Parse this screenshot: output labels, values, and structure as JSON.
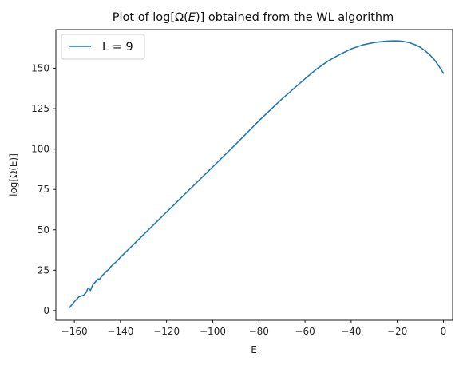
{
  "chart_data": {
    "type": "line",
    "title": "Plot of log[Ω(E)] obtained from the WL algorithm",
    "title_parts": {
      "prefix": "Plot of log[Ω(",
      "italic": "E",
      "suffix": ")] obtained from the WL algorithm"
    },
    "xlabel": "E",
    "ylabel": "log[Ω(E)]",
    "xlim": [
      -168,
      4
    ],
    "ylim": [
      -6,
      174
    ],
    "xticks": [
      -160,
      -140,
      -120,
      -100,
      -80,
      -60,
      -40,
      -20,
      0
    ],
    "xtick_labels": [
      "−160",
      "−140",
      "−120",
      "−100",
      "−80",
      "−60",
      "−40",
      "−20",
      "0"
    ],
    "yticks": [
      0,
      25,
      50,
      75,
      100,
      125,
      150
    ],
    "ytick_labels": [
      "0",
      "25",
      "50",
      "75",
      "100",
      "125",
      "150"
    ],
    "grid": false,
    "legend": {
      "placement": "top-left",
      "entries": [
        "L = 9"
      ]
    },
    "colors": {
      "series": "#1f77b4"
    },
    "series": [
      {
        "name": "L = 9",
        "x": [
          -162,
          -160,
          -158,
          -157,
          -156,
          -155,
          -154,
          -153,
          -152,
          -151,
          -150,
          -149,
          -148,
          -147,
          -146,
          -145,
          -144,
          -142,
          -140,
          -135,
          -130,
          -125,
          -120,
          -110,
          -100,
          -90,
          -80,
          -70,
          -60,
          -55,
          -50,
          -45,
          -40,
          -35,
          -30,
          -25,
          -22,
          -20,
          -18,
          -15,
          -12,
          -10,
          -8,
          -6,
          -4,
          -2,
          0
        ],
        "y": [
          2,
          5.5,
          8.5,
          9,
          9.5,
          11,
          14,
          12.5,
          16,
          17.5,
          19.5,
          19.5,
          21.5,
          23,
          24.5,
          25.5,
          27.5,
          30,
          33,
          40,
          47,
          54,
          61,
          75,
          89,
          103,
          117.5,
          131,
          143.5,
          149.5,
          154.5,
          158.5,
          162,
          164.5,
          166,
          166.8,
          167,
          167,
          166.8,
          166,
          164.5,
          163,
          161,
          158.5,
          155.5,
          151.5,
          147
        ]
      }
    ]
  }
}
